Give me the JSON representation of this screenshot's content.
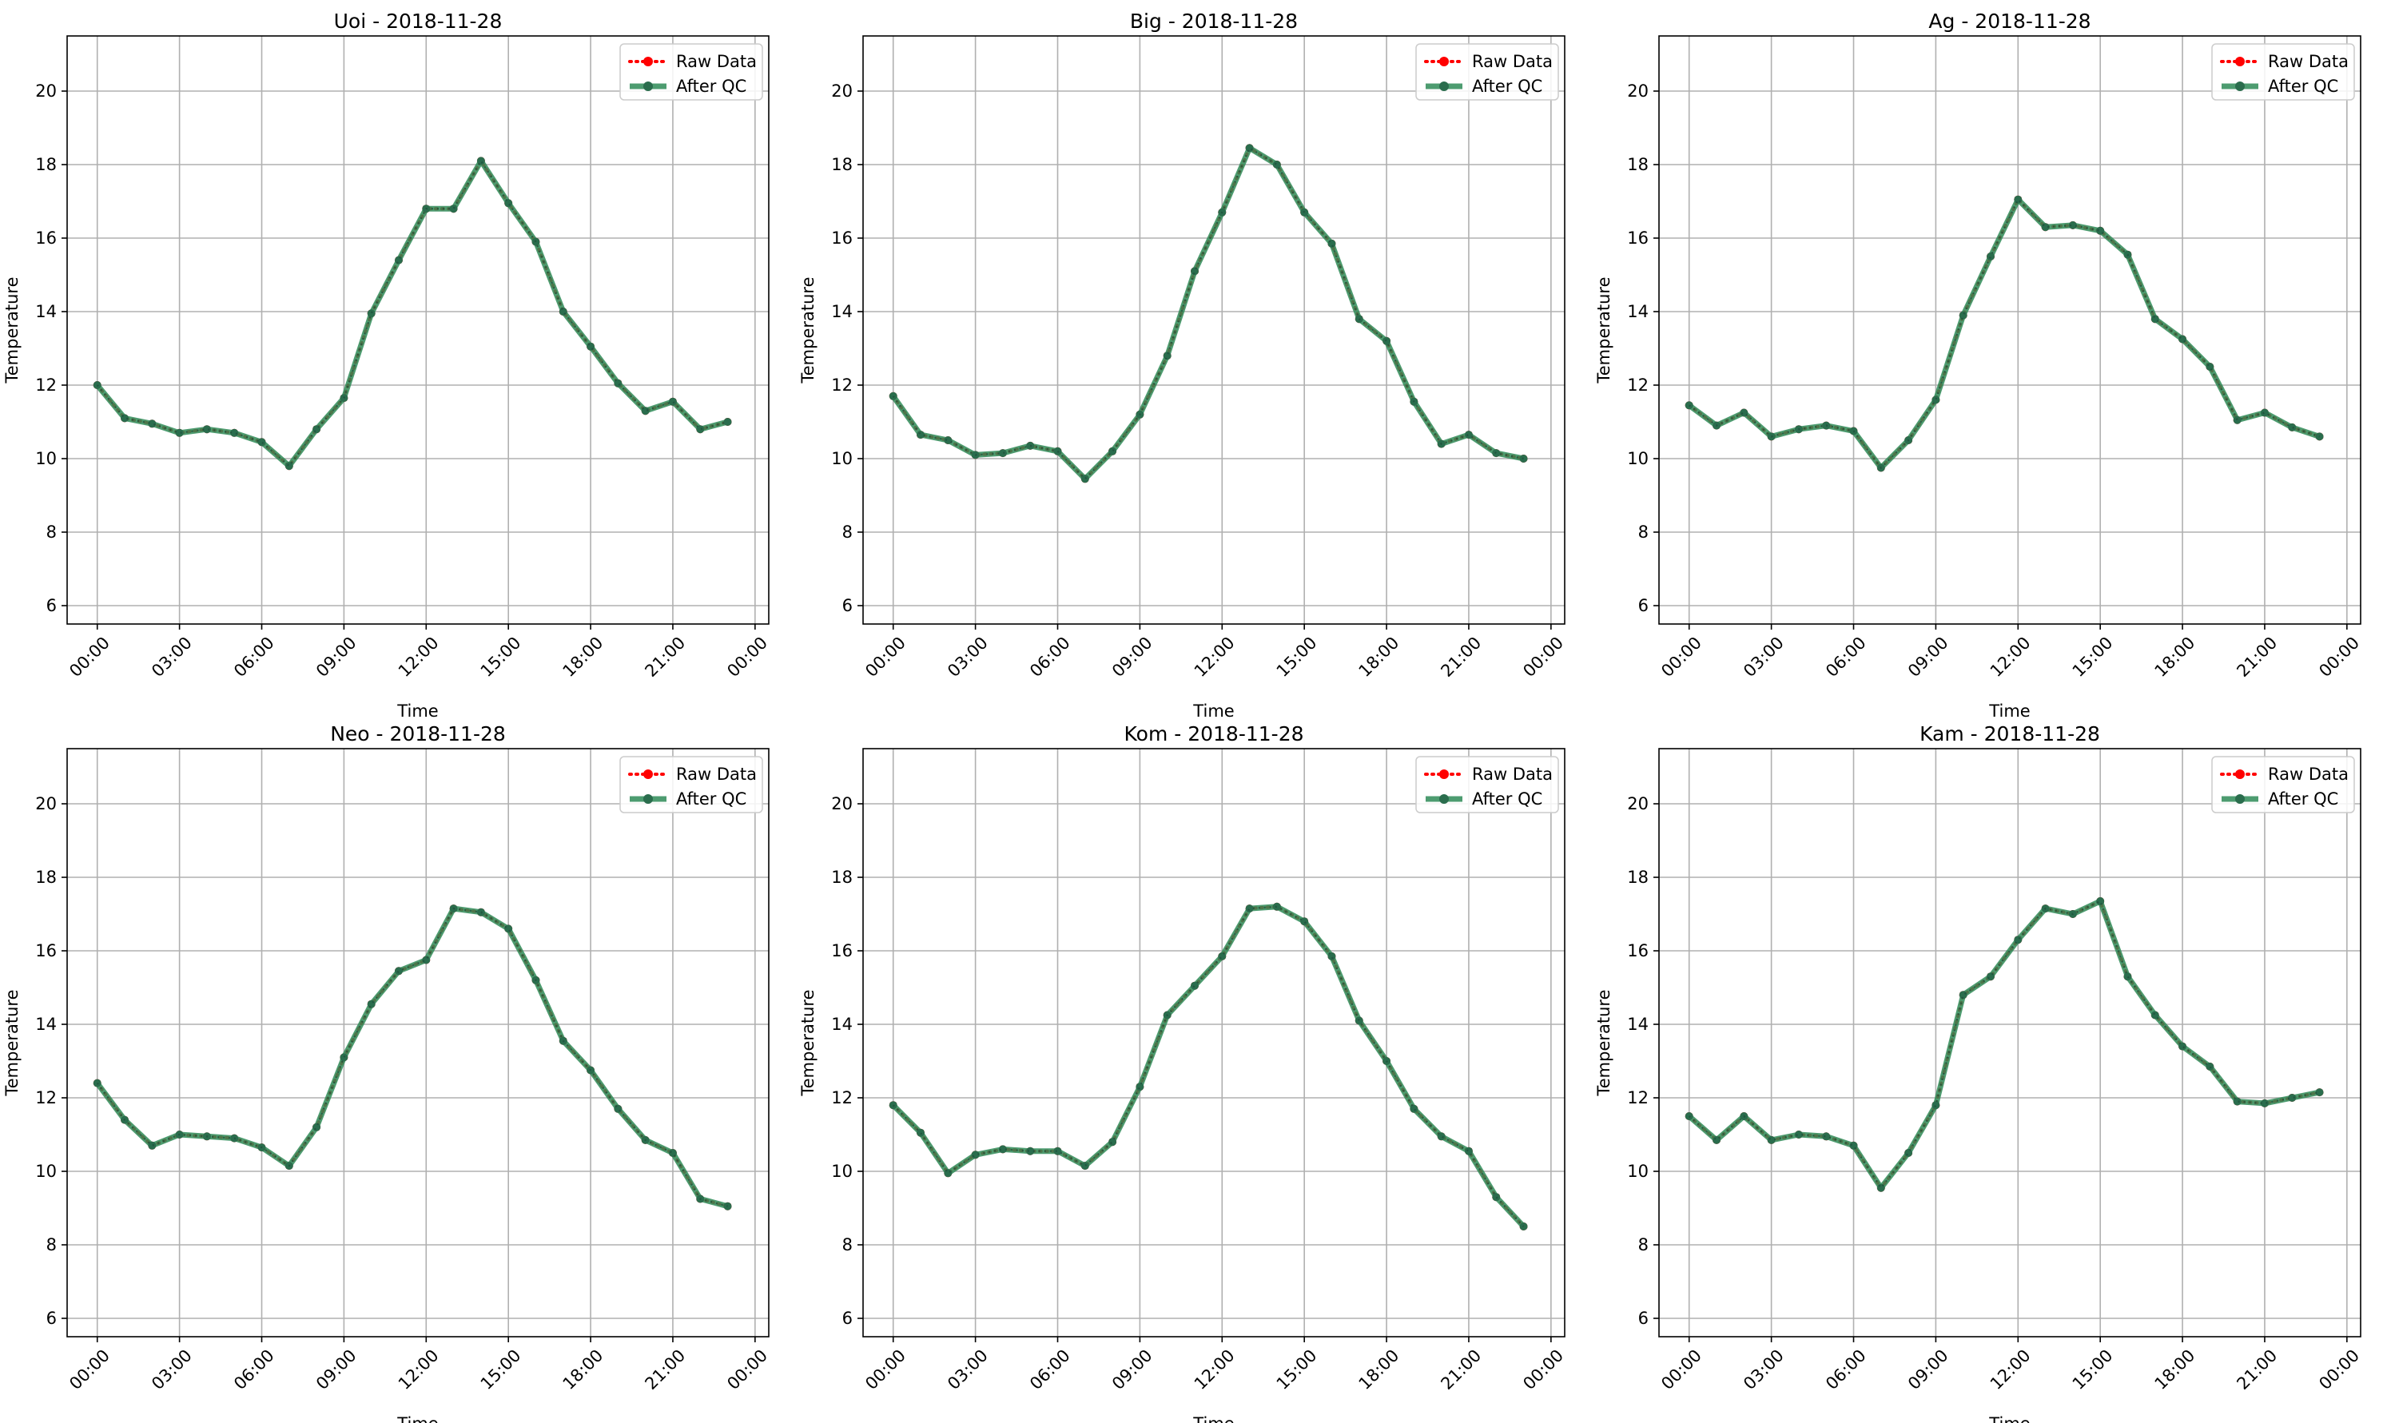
{
  "chart_data": [
    {
      "type": "line",
      "title": "Uoi - 2018-11-28",
      "xlabel": "Time",
      "ylabel": "Temperature",
      "ylim": [
        5.5,
        21.5
      ],
      "yticks": [
        6,
        8,
        10,
        12,
        14,
        16,
        18,
        20
      ],
      "xticks": [
        "00:00",
        "03:00",
        "06:00",
        "09:00",
        "12:00",
        "15:00",
        "18:00",
        "21:00",
        "00:00"
      ],
      "xlim_hours": [
        -1.1,
        24.5
      ],
      "grid": true,
      "legend_position": "top-right",
      "x": [
        "00:00",
        "01:00",
        "02:00",
        "03:00",
        "04:00",
        "05:00",
        "06:00",
        "07:00",
        "08:00",
        "09:00",
        "10:00",
        "11:00",
        "12:00",
        "13:00",
        "14:00",
        "15:00",
        "16:00",
        "17:00",
        "18:00",
        "19:00",
        "20:00",
        "21:00",
        "22:00",
        "23:00"
      ],
      "series": [
        {
          "name": "Raw Data",
          "color": "#ff0000",
          "style": "dotted",
          "values": [
            12.0,
            11.1,
            10.95,
            10.7,
            10.8,
            10.7,
            10.45,
            9.8,
            10.8,
            11.65,
            13.95,
            15.4,
            16.8,
            16.8,
            18.1,
            16.95,
            15.9,
            14.0,
            13.05,
            12.05,
            11.3,
            11.55,
            10.8,
            11.0
          ]
        },
        {
          "name": "After QC",
          "color": "#2e8b57",
          "style": "solid",
          "values": [
            12.0,
            11.1,
            10.95,
            10.7,
            10.8,
            10.7,
            10.45,
            9.8,
            10.8,
            11.65,
            13.95,
            15.4,
            16.8,
            16.8,
            18.1,
            16.95,
            15.9,
            14.0,
            13.05,
            12.05,
            11.3,
            11.55,
            10.8,
            11.0
          ]
        }
      ]
    },
    {
      "type": "line",
      "title": "Big - 2018-11-28",
      "xlabel": "Time",
      "ylabel": "Temperature",
      "ylim": [
        5.5,
        21.5
      ],
      "yticks": [
        6,
        8,
        10,
        12,
        14,
        16,
        18,
        20
      ],
      "xticks": [
        "00:00",
        "03:00",
        "06:00",
        "09:00",
        "12:00",
        "15:00",
        "18:00",
        "21:00",
        "00:00"
      ],
      "xlim_hours": [
        -1.1,
        24.5
      ],
      "grid": true,
      "legend_position": "top-right",
      "x": [
        "00:00",
        "01:00",
        "02:00",
        "03:00",
        "04:00",
        "05:00",
        "06:00",
        "07:00",
        "08:00",
        "09:00",
        "10:00",
        "11:00",
        "12:00",
        "13:00",
        "14:00",
        "15:00",
        "16:00",
        "17:00",
        "18:00",
        "19:00",
        "20:00",
        "21:00",
        "22:00",
        "23:00"
      ],
      "series": [
        {
          "name": "Raw Data",
          "color": "#ff0000",
          "style": "dotted",
          "values": [
            11.7,
            10.65,
            10.5,
            10.1,
            10.15,
            10.35,
            10.2,
            9.45,
            10.2,
            11.2,
            12.8,
            15.1,
            16.7,
            18.45,
            18.0,
            16.7,
            15.85,
            13.8,
            13.2,
            11.55,
            10.4,
            10.65,
            10.15,
            10.0
          ]
        },
        {
          "name": "After QC",
          "color": "#2e8b57",
          "style": "solid",
          "values": [
            11.7,
            10.65,
            10.5,
            10.1,
            10.15,
            10.35,
            10.2,
            9.45,
            10.2,
            11.2,
            12.8,
            15.1,
            16.7,
            18.45,
            18.0,
            16.7,
            15.85,
            13.8,
            13.2,
            11.55,
            10.4,
            10.65,
            10.15,
            10.0
          ]
        }
      ]
    },
    {
      "type": "line",
      "title": "Ag - 2018-11-28",
      "xlabel": "Time",
      "ylabel": "Temperature",
      "ylim": [
        5.5,
        21.5
      ],
      "yticks": [
        6,
        8,
        10,
        12,
        14,
        16,
        18,
        20
      ],
      "xticks": [
        "00:00",
        "03:00",
        "06:00",
        "09:00",
        "12:00",
        "15:00",
        "18:00",
        "21:00",
        "00:00"
      ],
      "xlim_hours": [
        -1.1,
        24.5
      ],
      "grid": true,
      "legend_position": "top-right",
      "x": [
        "00:00",
        "01:00",
        "02:00",
        "03:00",
        "04:00",
        "05:00",
        "06:00",
        "07:00",
        "08:00",
        "09:00",
        "10:00",
        "11:00",
        "12:00",
        "13:00",
        "14:00",
        "15:00",
        "16:00",
        "17:00",
        "18:00",
        "19:00",
        "20:00",
        "21:00",
        "22:00",
        "23:00"
      ],
      "series": [
        {
          "name": "Raw Data",
          "color": "#ff0000",
          "style": "dotted",
          "values": [
            11.45,
            10.9,
            11.25,
            10.6,
            10.8,
            10.9,
            10.75,
            9.75,
            10.5,
            11.6,
            13.9,
            15.5,
            17.05,
            16.3,
            16.35,
            16.2,
            15.55,
            13.8,
            13.25,
            12.5,
            11.05,
            11.25,
            10.85,
            10.6
          ]
        },
        {
          "name": "After QC",
          "color": "#2e8b57",
          "style": "solid",
          "values": [
            11.45,
            10.9,
            11.25,
            10.6,
            10.8,
            10.9,
            10.75,
            9.75,
            10.5,
            11.6,
            13.9,
            15.5,
            17.05,
            16.3,
            16.35,
            16.2,
            15.55,
            13.8,
            13.25,
            12.5,
            11.05,
            11.25,
            10.85,
            10.6
          ]
        }
      ]
    },
    {
      "type": "line",
      "title": "Neo - 2018-11-28",
      "xlabel": "Time",
      "ylabel": "Temperature",
      "ylim": [
        5.5,
        21.5
      ],
      "yticks": [
        6,
        8,
        10,
        12,
        14,
        16,
        18,
        20
      ],
      "xticks": [
        "00:00",
        "03:00",
        "06:00",
        "09:00",
        "12:00",
        "15:00",
        "18:00",
        "21:00",
        "00:00"
      ],
      "xlim_hours": [
        -1.1,
        24.5
      ],
      "grid": true,
      "legend_position": "top-right",
      "x": [
        "00:00",
        "01:00",
        "02:00",
        "03:00",
        "04:00",
        "05:00",
        "06:00",
        "07:00",
        "08:00",
        "09:00",
        "10:00",
        "11:00",
        "12:00",
        "13:00",
        "14:00",
        "15:00",
        "16:00",
        "17:00",
        "18:00",
        "19:00",
        "20:00",
        "21:00",
        "22:00",
        "23:00"
      ],
      "series": [
        {
          "name": "Raw Data",
          "color": "#ff0000",
          "style": "dotted",
          "values": [
            12.4,
            11.4,
            10.7,
            11.0,
            10.95,
            10.9,
            10.65,
            10.15,
            11.2,
            13.1,
            14.55,
            15.45,
            15.75,
            17.15,
            17.05,
            16.6,
            15.2,
            13.55,
            12.75,
            11.7,
            10.85,
            10.5,
            9.25,
            9.05
          ]
        },
        {
          "name": "After QC",
          "color": "#2e8b57",
          "style": "solid",
          "values": [
            12.4,
            11.4,
            10.7,
            11.0,
            10.95,
            10.9,
            10.65,
            10.15,
            11.2,
            13.1,
            14.55,
            15.45,
            15.75,
            17.15,
            17.05,
            16.6,
            15.2,
            13.55,
            12.75,
            11.7,
            10.85,
            10.5,
            9.25,
            9.05
          ]
        }
      ]
    },
    {
      "type": "line",
      "title": "Kom - 2018-11-28",
      "xlabel": "Time",
      "ylabel": "Temperature",
      "ylim": [
        5.5,
        21.5
      ],
      "yticks": [
        6,
        8,
        10,
        12,
        14,
        16,
        18,
        20
      ],
      "xticks": [
        "00:00",
        "03:00",
        "06:00",
        "09:00",
        "12:00",
        "15:00",
        "18:00",
        "21:00",
        "00:00"
      ],
      "xlim_hours": [
        -1.1,
        24.5
      ],
      "grid": true,
      "legend_position": "top-right",
      "x": [
        "00:00",
        "01:00",
        "02:00",
        "03:00",
        "04:00",
        "05:00",
        "06:00",
        "07:00",
        "08:00",
        "09:00",
        "10:00",
        "11:00",
        "12:00",
        "13:00",
        "14:00",
        "15:00",
        "16:00",
        "17:00",
        "18:00",
        "19:00",
        "20:00",
        "21:00",
        "22:00",
        "23:00"
      ],
      "series": [
        {
          "name": "Raw Data",
          "color": "#ff0000",
          "style": "dotted",
          "values": [
            11.8,
            11.05,
            9.95,
            10.45,
            10.6,
            10.55,
            10.55,
            10.15,
            10.8,
            12.3,
            14.25,
            15.05,
            15.85,
            17.15,
            17.2,
            16.8,
            15.85,
            14.1,
            13.0,
            11.7,
            10.95,
            10.55,
            9.3,
            8.5
          ]
        },
        {
          "name": "After QC",
          "color": "#2e8b57",
          "style": "solid",
          "values": [
            11.8,
            11.05,
            9.95,
            10.45,
            10.6,
            10.55,
            10.55,
            10.15,
            10.8,
            12.3,
            14.25,
            15.05,
            15.85,
            17.15,
            17.2,
            16.8,
            15.85,
            14.1,
            13.0,
            11.7,
            10.95,
            10.55,
            9.3,
            8.5
          ]
        }
      ]
    },
    {
      "type": "line",
      "title": "Kam - 2018-11-28",
      "xlabel": "Time",
      "ylabel": "Temperature",
      "ylim": [
        5.5,
        21.5
      ],
      "yticks": [
        6,
        8,
        10,
        12,
        14,
        16,
        18,
        20
      ],
      "xticks": [
        "00:00",
        "03:00",
        "06:00",
        "09:00",
        "12:00",
        "15:00",
        "18:00",
        "21:00",
        "00:00"
      ],
      "xlim_hours": [
        -1.1,
        24.5
      ],
      "grid": true,
      "legend_position": "top-right",
      "x": [
        "00:00",
        "01:00",
        "02:00",
        "03:00",
        "04:00",
        "05:00",
        "06:00",
        "07:00",
        "08:00",
        "09:00",
        "10:00",
        "11:00",
        "12:00",
        "13:00",
        "14:00",
        "15:00",
        "16:00",
        "17:00",
        "18:00",
        "19:00",
        "20:00",
        "21:00",
        "22:00",
        "23:00"
      ],
      "series": [
        {
          "name": "Raw Data",
          "color": "#ff0000",
          "style": "dotted",
          "values": [
            11.5,
            10.85,
            11.5,
            10.85,
            11.0,
            10.95,
            10.7,
            9.55,
            10.5,
            11.8,
            14.8,
            15.3,
            16.3,
            17.15,
            17.0,
            17.35,
            15.3,
            14.25,
            13.4,
            12.85,
            11.9,
            11.85,
            12.0,
            12.15
          ]
        },
        {
          "name": "After QC",
          "color": "#2e8b57",
          "style": "solid",
          "values": [
            11.5,
            10.85,
            11.5,
            10.85,
            11.0,
            10.95,
            10.7,
            9.55,
            10.5,
            11.8,
            14.8,
            15.3,
            16.3,
            17.15,
            17.0,
            17.35,
            15.3,
            14.25,
            13.4,
            12.85,
            11.9,
            11.85,
            12.0,
            12.15
          ]
        }
      ]
    }
  ]
}
